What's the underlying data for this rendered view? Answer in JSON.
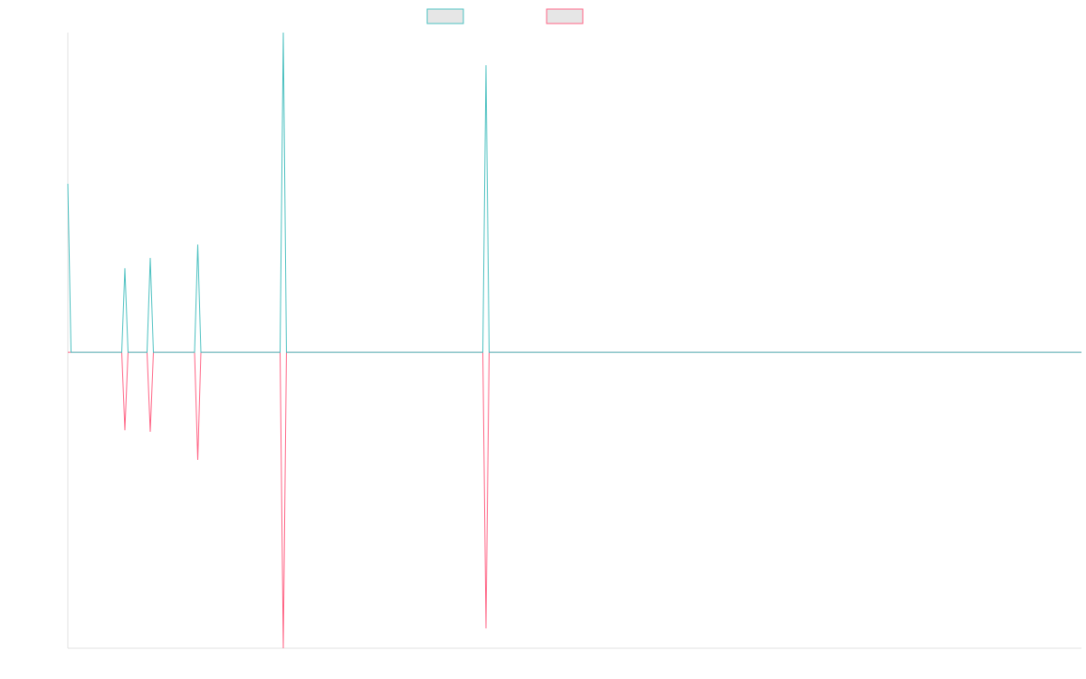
{
  "chart_data": {
    "type": "line",
    "x": [
      0,
      1,
      17,
      18,
      19,
      25,
      26,
      27,
      40,
      41,
      42,
      67,
      68,
      69,
      131,
      132,
      133,
      320
    ],
    "xlim": [
      0,
      320
    ],
    "ylim": [
      -92.6,
      100
    ],
    "series": [
      {
        "color": "#4bc0c0",
        "values": [
          52.7,
          0,
          0,
          26.3,
          0,
          0,
          29.5,
          0,
          0,
          33.7,
          0,
          0,
          100,
          0,
          0,
          89.8,
          0,
          0
        ]
      },
      {
        "color": "#ff6384",
        "values": [
          0,
          0,
          0,
          -24.4,
          0,
          0,
          -24.9,
          0,
          0,
          -33.7,
          0,
          0,
          -92.6,
          0,
          0,
          -86.4,
          0,
          0
        ]
      }
    ]
  }
}
